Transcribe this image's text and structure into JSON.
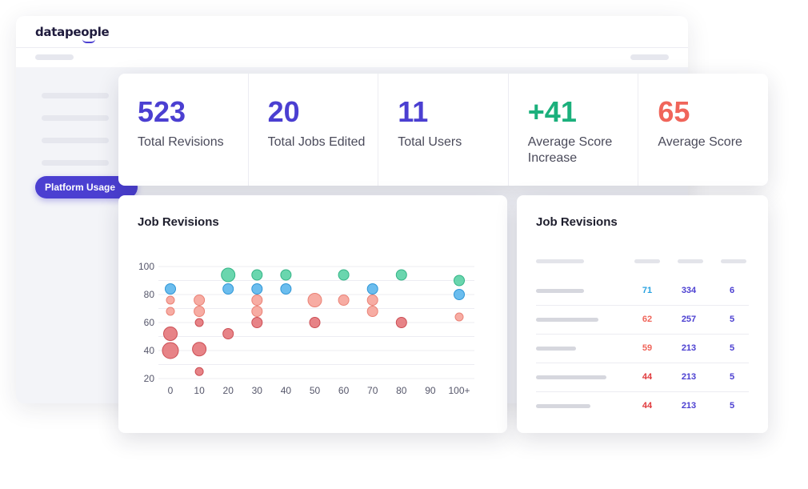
{
  "app": {
    "logo": "datapeople",
    "nav_active": "Platform Usage"
  },
  "stats": [
    {
      "value": "523",
      "label": "Total Revisions",
      "color": "#4b3fd1"
    },
    {
      "value": "20",
      "label": "Total Jobs Edited",
      "color": "#4b3fd1"
    },
    {
      "value": "11",
      "label": "Total Users",
      "color": "#4b3fd1"
    },
    {
      "value": "+41",
      "label": "Average Score Increase",
      "color": "#1bb07c"
    },
    {
      "value": "65",
      "label": "Average Score",
      "color": "#f0655a"
    }
  ],
  "chart_card": {
    "title": "Job Revisions"
  },
  "table_card": {
    "title": "Job Revisions",
    "rows": [
      {
        "score": "71",
        "score_color": "#28a2e0",
        "b": "334",
        "c": "6"
      },
      {
        "score": "62",
        "score_color": "#f0655a",
        "b": "257",
        "c": "5"
      },
      {
        "score": "59",
        "score_color": "#f0655a",
        "b": "213",
        "c": "5"
      },
      {
        "score": "44",
        "score_color": "#e0383b",
        "b": "213",
        "c": "5"
      },
      {
        "score": "44",
        "score_color": "#e0383b",
        "b": "213",
        "c": "5"
      }
    ]
  },
  "colors": {
    "accent": "#4b3fd1",
    "green": "#5ad1a5",
    "blue": "#5bb6ec",
    "salmon": "#f6a399",
    "red": "#e4767a"
  },
  "chart_data": {
    "type": "scatter",
    "title": "Job Revisions",
    "x_ticks": [
      "0",
      "10",
      "20",
      "30",
      "40",
      "50",
      "60",
      "70",
      "80",
      "90",
      "100+"
    ],
    "y_ticks": [
      "20",
      "40",
      "60",
      "80",
      "100"
    ],
    "xlim": [
      0,
      100
    ],
    "ylim": [
      20,
      100
    ],
    "grid": true,
    "points": [
      {
        "x": 0,
        "y": 84,
        "size": "m",
        "group": "blue"
      },
      {
        "x": 0,
        "y": 76,
        "size": "s",
        "group": "salmon"
      },
      {
        "x": 0,
        "y": 68,
        "size": "s",
        "group": "salmon"
      },
      {
        "x": 0,
        "y": 52,
        "size": "l",
        "group": "red"
      },
      {
        "x": 0,
        "y": 40,
        "size": "xl",
        "group": "red"
      },
      {
        "x": 10,
        "y": 76,
        "size": "m",
        "group": "salmon"
      },
      {
        "x": 10,
        "y": 68,
        "size": "m",
        "group": "salmon"
      },
      {
        "x": 10,
        "y": 60,
        "size": "s",
        "group": "red"
      },
      {
        "x": 10,
        "y": 41,
        "size": "l",
        "group": "red"
      },
      {
        "x": 10,
        "y": 25,
        "size": "s",
        "group": "red"
      },
      {
        "x": 20,
        "y": 94,
        "size": "l",
        "group": "green"
      },
      {
        "x": 20,
        "y": 84,
        "size": "m",
        "group": "blue"
      },
      {
        "x": 20,
        "y": 52,
        "size": "m",
        "group": "red"
      },
      {
        "x": 30,
        "y": 94,
        "size": "m",
        "group": "green"
      },
      {
        "x": 30,
        "y": 84,
        "size": "m",
        "group": "blue"
      },
      {
        "x": 30,
        "y": 76,
        "size": "m",
        "group": "salmon"
      },
      {
        "x": 30,
        "y": 68,
        "size": "m",
        "group": "salmon"
      },
      {
        "x": 30,
        "y": 60,
        "size": "m",
        "group": "red"
      },
      {
        "x": 40,
        "y": 94,
        "size": "m",
        "group": "green"
      },
      {
        "x": 40,
        "y": 84,
        "size": "m",
        "group": "blue"
      },
      {
        "x": 50,
        "y": 76,
        "size": "l",
        "group": "salmon"
      },
      {
        "x": 50,
        "y": 60,
        "size": "m",
        "group": "red"
      },
      {
        "x": 60,
        "y": 94,
        "size": "m",
        "group": "green"
      },
      {
        "x": 60,
        "y": 76,
        "size": "m",
        "group": "salmon"
      },
      {
        "x": 70,
        "y": 84,
        "size": "m",
        "group": "blue"
      },
      {
        "x": 70,
        "y": 76,
        "size": "m",
        "group": "salmon"
      },
      {
        "x": 70,
        "y": 68,
        "size": "m",
        "group": "salmon"
      },
      {
        "x": 80,
        "y": 94,
        "size": "m",
        "group": "green"
      },
      {
        "x": 80,
        "y": 60,
        "size": "m",
        "group": "red"
      },
      {
        "x": 100,
        "y": 90,
        "size": "m",
        "group": "green"
      },
      {
        "x": 100,
        "y": 80,
        "size": "m",
        "group": "blue"
      },
      {
        "x": 100,
        "y": 64,
        "size": "s",
        "group": "salmon"
      }
    ]
  }
}
